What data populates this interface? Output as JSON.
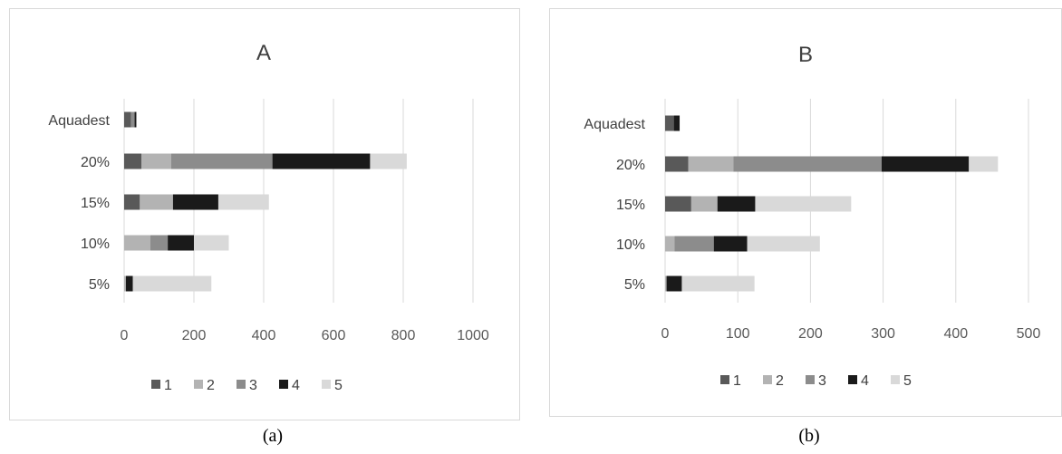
{
  "chart_data": [
    {
      "type": "bar",
      "orientation": "horizontal",
      "stacked": true,
      "title": "A",
      "categories": [
        "Aquadest",
        "20%",
        "15%",
        "10%",
        "5%"
      ],
      "series": [
        {
          "name": "1",
          "color": "#595959",
          "values": [
            20,
            50,
            45,
            0,
            0
          ]
        },
        {
          "name": "2",
          "color": "#b3b3b3",
          "values": [
            0,
            85,
            95,
            75,
            5
          ]
        },
        {
          "name": "3",
          "color": "#8c8c8c",
          "values": [
            10,
            290,
            0,
            50,
            0
          ]
        },
        {
          "name": "4",
          "color": "#1a1a1a",
          "values": [
            5,
            280,
            130,
            75,
            20
          ]
        },
        {
          "name": "5",
          "color": "#d9d9d9",
          "values": [
            0,
            105,
            145,
            100,
            225
          ]
        }
      ],
      "xlim": [
        0,
        1000
      ],
      "xticks": [
        "0",
        "200",
        "400",
        "600",
        "800",
        "1000"
      ],
      "grid": true,
      "legend_position": "bottom",
      "caption": "(a)"
    },
    {
      "type": "bar",
      "orientation": "horizontal",
      "stacked": true,
      "title": "B",
      "categories": [
        "Aquadest",
        "20%",
        "15%",
        "10%",
        "5%"
      ],
      "series": [
        {
          "name": "1",
          "color": "#595959",
          "values": [
            12,
            32,
            36,
            0,
            0
          ]
        },
        {
          "name": "2",
          "color": "#b3b3b3",
          "values": [
            0,
            62,
            36,
            13,
            2
          ]
        },
        {
          "name": "3",
          "color": "#8c8c8c",
          "values": [
            0,
            204,
            0,
            54,
            0
          ]
        },
        {
          "name": "4",
          "color": "#1a1a1a",
          "values": [
            8,
            120,
            52,
            46,
            21
          ]
        },
        {
          "name": "5",
          "color": "#d9d9d9",
          "values": [
            0,
            40,
            132,
            100,
            100
          ]
        }
      ],
      "xlim": [
        0,
        500
      ],
      "xticks": [
        "0",
        "100",
        "200",
        "300",
        "400",
        "500"
      ],
      "grid": true,
      "legend_position": "bottom",
      "caption": "(b)"
    }
  ]
}
